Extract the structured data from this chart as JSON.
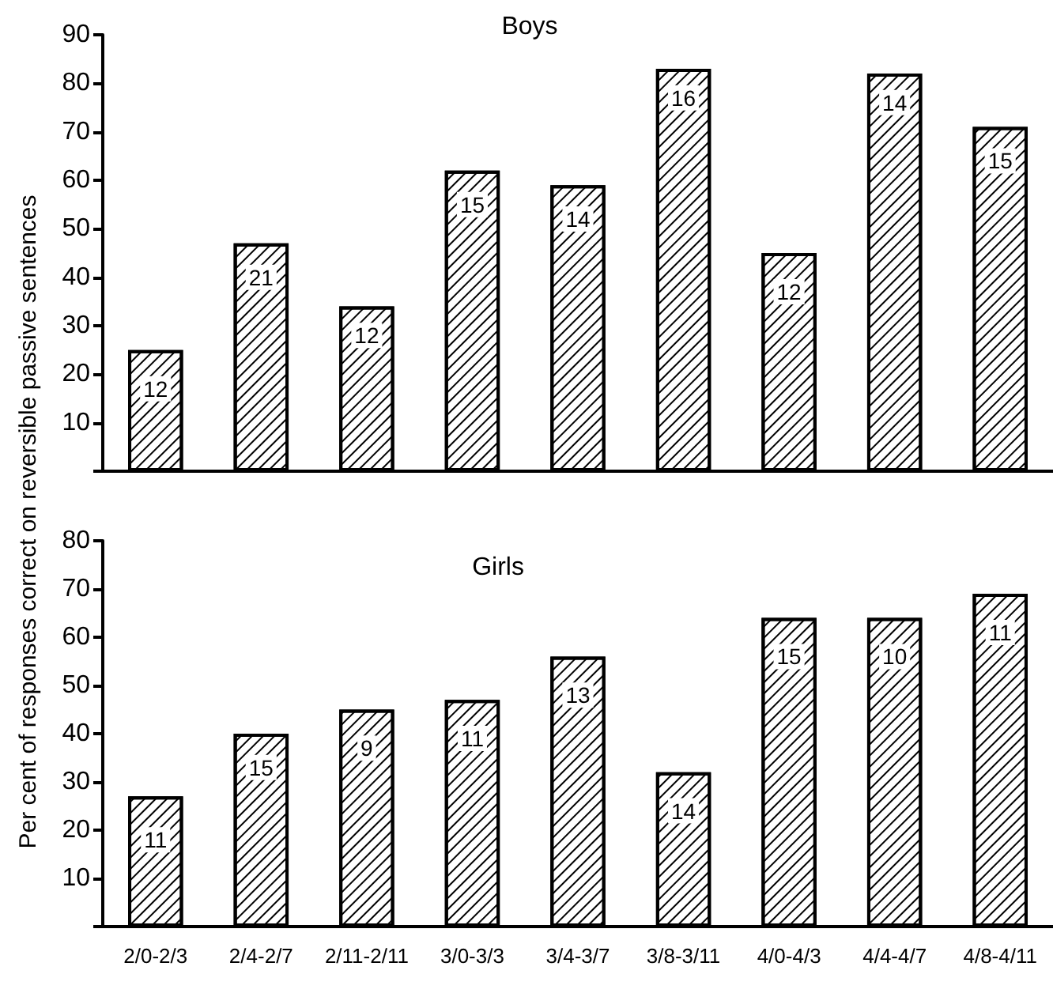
{
  "chart_data": [
    {
      "type": "bar",
      "title": "Boys",
      "ylabel": "Per cent of responses correct on reversible passive sentences",
      "categories": [
        "2/0-2/3",
        "2/4-2/7",
        "2/11-2/11",
        "3/0-3/3",
        "3/4-3/7",
        "3/8-3/11",
        "4/0-4/3",
        "4/4-4/7",
        "4/8-4/11"
      ],
      "values": [
        25,
        47,
        34,
        62,
        59,
        83,
        45,
        82,
        71
      ],
      "color": "#ffffff",
      "ylim": [
        0,
        90
      ],
      "yticks": [
        {
          "value": 0,
          "label": null
        },
        10,
        20,
        30,
        40,
        50,
        60,
        70,
        80,
        90
      ],
      "tick_labels": "y",
      "annotations": [
        {
          "text": "12",
          "x": "2/0-2/3",
          "y": 17
        },
        {
          "text": "21",
          "x": "2/4-2/7",
          "y": 40
        },
        {
          "text": "12",
          "x": "2/11-2/11",
          "y": 28
        },
        {
          "text": "15",
          "x": "3/0-3/3",
          "y": 55
        },
        {
          "text": "14",
          "x": "3/4-3/7",
          "y": 52
        },
        {
          "text": "16",
          "x": "3/8-3/11",
          "y": 77
        },
        {
          "text": "12",
          "x": "4/0-4/3",
          "y": 37
        },
        {
          "text": "14",
          "x": "4/4-4/7",
          "y": 76
        },
        {
          "text": "15",
          "x": "4/8-4/11",
          "y": 64
        }
      ]
    },
    {
      "type": "bar",
      "title": "Girls",
      "categories": [
        "2/0-2/3",
        "2/4-2/7",
        "2/11-2/11",
        "3/0-3/3",
        "3/4-3/7",
        "3/8-3/11",
        "4/0-4/3",
        "4/4-4/7",
        "4/8-4/11"
      ],
      "values": [
        27,
        40,
        45,
        47,
        56,
        32,
        64,
        64,
        69
      ],
      "color": "#ffffff",
      "ylim": [
        0,
        80
      ],
      "yticks": [
        {
          "value": 0,
          "label": null
        },
        10,
        20,
        30,
        40,
        50,
        60,
        70,
        80
      ],
      "annotations": [
        {
          "text": "11",
          "x": "2/0-2/3",
          "y": 18
        },
        {
          "text": "15",
          "x": "2/4-2/7",
          "y": 33
        },
        {
          "text": "9",
          "x": "2/11-2/11",
          "y": 37
        },
        {
          "text": "11",
          "x": "3/0-3/3",
          "y": 39
        },
        {
          "text": "13",
          "x": "3/4-3/7",
          "y": 48
        },
        {
          "text": "14",
          "x": "3/8-3/11",
          "y": 24
        },
        {
          "text": "15",
          "x": "4/0-4/3",
          "y": 56
        },
        {
          "text": "10",
          "x": "4/4-4/7",
          "y": 56
        },
        {
          "text": "11",
          "x": "4/8-4/11",
          "y": 61
        }
      ]
    }
  ]
}
